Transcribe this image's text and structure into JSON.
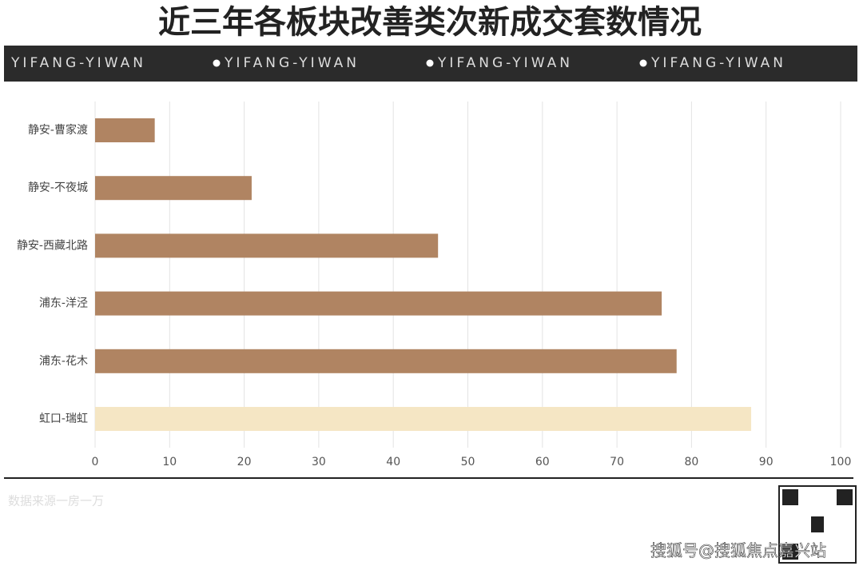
{
  "chart_data": {
    "type": "barh",
    "title": "近三年各板块改善类次新成交套数情况",
    "categories": [
      "静安-曹家渡",
      "静安-不夜城",
      "静安-西藏北路",
      "浦东-洋泾",
      "浦东-花木",
      "虹口-瑞虹"
    ],
    "values": [
      8,
      21,
      46,
      76,
      78,
      88
    ],
    "colors": [
      "#b08462",
      "#b08462",
      "#b08462",
      "#b08462",
      "#b08462",
      "#f5e6c4"
    ],
    "xlim": [
      0,
      100
    ],
    "xticks": [
      0,
      10,
      20,
      30,
      40,
      50,
      60,
      70,
      80,
      90,
      100
    ],
    "grid": true
  },
  "banner": [
    "YIFANG-YIWAN",
    "YIFANG-YIWAN",
    "YIFANG-YIWAN",
    "YIFANG-YIWAN"
  ],
  "source": "数据来源一房一万",
  "watermark": "搜狐号@搜狐焦点嘉兴站"
}
